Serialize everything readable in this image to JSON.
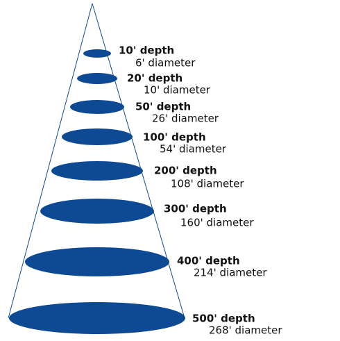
{
  "levels": [
    {
      "depth": "10' depth",
      "diameter": "6' diameter"
    },
    {
      "depth": "20' depth",
      "diameter": "10' diameter"
    },
    {
      "depth": "50' depth",
      "diameter": "26' diameter"
    },
    {
      "depth": "100' depth",
      "diameter": "54' diameter"
    },
    {
      "depth": "200' depth",
      "diameter": "108' diameter"
    },
    {
      "depth": "300' depth",
      "diameter": "160' diameter"
    },
    {
      "depth": "400' depth",
      "diameter": "214' diameter"
    },
    {
      "depth": "500' depth",
      "diameter": "268' diameter"
    }
  ]
}
